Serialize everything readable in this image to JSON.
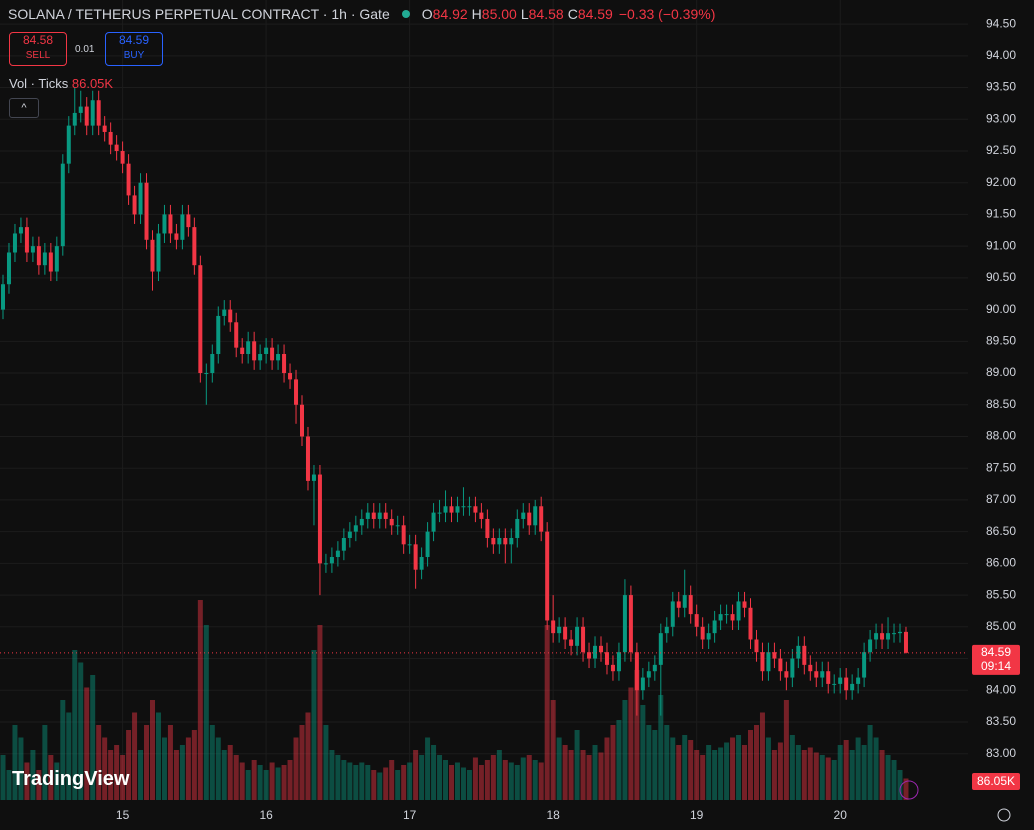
{
  "header": {
    "title": "SOLANA / TETHERUS PERPETUAL CONTRACT · 1h · Gate",
    "ohlc": [
      {
        "key": "O",
        "text": "84.92"
      },
      {
        "key": "H",
        "text": "85.00"
      },
      {
        "key": "L",
        "text": "84.58"
      },
      {
        "key": "C",
        "text": "84.59"
      }
    ],
    "change": "−0.33 (−0.39%)"
  },
  "trade": {
    "sell_price": "84.58",
    "sell": "SELL",
    "spread": "0.01",
    "buy_price": "84.59",
    "buy": "BUY"
  },
  "volume_legend": {
    "name": "Vol · Ticks",
    "value": "86.05K"
  },
  "logo": "TradingView",
  "chart_data": {
    "type": "candlestick",
    "up_color": "#089981",
    "down_color": "#f23645",
    "countdown": "09:14",
    "grid": true,
    "categories": [
      null,
      null,
      null,
      null,
      null,
      null,
      null,
      null,
      null,
      null,
      null,
      null,
      null,
      null,
      null,
      null,
      null,
      null,
      null,
      null,
      "15",
      null,
      null,
      null,
      null,
      null,
      null,
      null,
      null,
      null,
      null,
      null,
      null,
      null,
      null,
      null,
      null,
      null,
      null,
      null,
      null,
      null,
      null,
      null,
      "16",
      null,
      null,
      null,
      null,
      null,
      null,
      null,
      null,
      null,
      null,
      null,
      null,
      null,
      null,
      null,
      null,
      null,
      null,
      null,
      null,
      null,
      null,
      null,
      "17",
      null,
      null,
      null,
      null,
      null,
      null,
      null,
      null,
      null,
      null,
      null,
      null,
      null,
      null,
      null,
      null,
      null,
      null,
      null,
      null,
      null,
      null,
      null,
      "18",
      null,
      null,
      null,
      null,
      null,
      null,
      null,
      null,
      null,
      null,
      null,
      null,
      null,
      null,
      null,
      null,
      null,
      null,
      null,
      null,
      null,
      null,
      null,
      "19",
      null,
      null,
      null,
      null,
      null,
      null,
      null,
      null,
      null,
      null,
      null,
      null,
      null,
      null,
      null,
      null,
      null,
      null,
      null,
      null,
      null,
      null,
      null,
      "20",
      null,
      null,
      null,
      null,
      null,
      null,
      null,
      null,
      null,
      null,
      null
    ],
    "open": [
      90.0,
      90.4,
      90.9,
      91.2,
      91.3,
      90.9,
      91.0,
      90.7,
      90.9,
      90.6,
      91.0,
      92.3,
      92.9,
      93.1,
      93.2,
      92.9,
      93.3,
      92.9,
      92.8,
      92.6,
      92.5,
      92.3,
      91.8,
      91.5,
      92.0,
      91.1,
      90.6,
      91.2,
      91.5,
      91.2,
      91.1,
      91.5,
      91.3,
      90.7,
      89.0,
      89.0,
      89.3,
      89.9,
      90.0,
      89.8,
      89.4,
      89.3,
      89.5,
      89.2,
      89.3,
      89.4,
      89.2,
      89.3,
      89.0,
      88.9,
      88.5,
      88.0,
      87.3,
      87.4,
      86.0,
      86.0,
      86.1,
      86.2,
      86.4,
      86.5,
      86.6,
      86.7,
      86.8,
      86.7,
      86.8,
      86.7,
      86.6,
      86.6,
      86.3,
      86.3,
      85.9,
      86.1,
      86.5,
      86.8,
      86.8,
      86.9,
      86.8,
      86.9,
      86.9,
      86.9,
      86.8,
      86.7,
      86.4,
      86.3,
      86.4,
      86.3,
      86.4,
      86.7,
      86.8,
      86.6,
      86.9,
      86.5,
      85.1,
      84.9,
      85.0,
      84.8,
      84.7,
      85.0,
      84.6,
      84.5,
      84.7,
      84.6,
      84.4,
      84.3,
      84.6,
      85.5,
      84.6,
      84.0,
      84.2,
      84.3,
      84.4,
      84.9,
      85.0,
      85.4,
      85.3,
      85.5,
      85.2,
      85.0,
      84.8,
      84.9,
      85.1,
      85.2,
      85.2,
      85.1,
      85.4,
      85.3,
      84.8,
      84.6,
      84.3,
      84.6,
      84.5,
      84.3,
      84.2,
      84.5,
      84.7,
      84.4,
      84.3,
      84.2,
      84.3,
      84.1,
      84.1,
      84.2,
      84.0,
      84.1,
      84.2,
      84.6,
      84.8,
      84.9,
      84.8,
      84.9,
      84.9,
      84.92
    ],
    "high": [
      90.55,
      91.05,
      91.35,
      91.45,
      91.45,
      91.15,
      91.15,
      91.05,
      91.05,
      91.15,
      92.45,
      93.05,
      93.5,
      93.45,
      93.35,
      93.45,
      93.45,
      93.05,
      92.95,
      92.75,
      92.65,
      92.45,
      91.95,
      92.15,
      92.15,
      91.25,
      91.35,
      91.65,
      91.65,
      91.35,
      91.65,
      91.65,
      91.45,
      90.85,
      89.15,
      89.45,
      90.05,
      90.15,
      90.15,
      89.95,
      89.55,
      89.65,
      89.65,
      89.45,
      89.55,
      89.55,
      89.45,
      89.45,
      89.15,
      89.05,
      88.65,
      88.15,
      87.55,
      87.55,
      86.15,
      86.25,
      86.35,
      86.55,
      86.65,
      86.75,
      86.85,
      86.95,
      86.95,
      86.95,
      86.95,
      86.85,
      86.75,
      86.75,
      86.45,
      86.45,
      86.25,
      86.65,
      86.95,
      87.0,
      87.15,
      87.05,
      87.05,
      87.2,
      87.05,
      87.05,
      86.95,
      86.85,
      86.55,
      86.55,
      86.55,
      86.55,
      86.85,
      86.95,
      86.95,
      87.0,
      87.05,
      86.65,
      85.5,
      85.15,
      85.15,
      84.95,
      85.15,
      85.15,
      84.75,
      84.85,
      84.85,
      84.75,
      84.55,
      84.75,
      85.75,
      85.65,
      84.75,
      84.35,
      84.45,
      84.55,
      85.05,
      85.15,
      85.55,
      85.55,
      85.9,
      85.65,
      85.35,
      85.15,
      85.05,
      85.25,
      85.35,
      85.35,
      85.35,
      85.55,
      85.55,
      85.45,
      84.95,
      84.75,
      84.75,
      84.75,
      84.65,
      84.45,
      84.65,
      84.85,
      84.85,
      84.55,
      84.45,
      84.45,
      84.45,
      84.25,
      84.35,
      84.35,
      84.25,
      84.35,
      84.75,
      84.95,
      85.05,
      85.05,
      85.15,
      85.05,
      85.05,
      85.0
    ],
    "low": [
      89.85,
      90.25,
      90.75,
      91.05,
      90.75,
      90.75,
      90.55,
      90.55,
      90.45,
      90.45,
      90.85,
      92.15,
      92.75,
      92.95,
      92.75,
      92.75,
      92.75,
      92.65,
      92.45,
      92.35,
      92.15,
      91.65,
      91.35,
      91.35,
      90.95,
      90.3,
      90.45,
      91.05,
      91.05,
      90.95,
      90.95,
      91.15,
      90.55,
      88.85,
      88.5,
      88.85,
      89.15,
      89.75,
      89.65,
      89.25,
      89.15,
      89.15,
      89.05,
      89.05,
      89.15,
      89.05,
      89.05,
      88.85,
      88.75,
      88.2,
      87.85,
      87.15,
      86.6,
      85.5,
      85.85,
      85.85,
      85.95,
      86.05,
      86.25,
      86.35,
      86.45,
      86.55,
      86.55,
      86.55,
      86.55,
      86.45,
      86.45,
      86.15,
      86.15,
      85.6,
      85.75,
      85.95,
      86.35,
      86.65,
      86.65,
      86.65,
      86.65,
      86.75,
      86.75,
      86.65,
      86.55,
      86.25,
      86.15,
      86.15,
      86.0,
      86.0,
      86.25,
      86.55,
      86.45,
      86.45,
      86.35,
      84.95,
      84.75,
      84.75,
      84.65,
      84.55,
      84.55,
      84.45,
      84.35,
      84.35,
      84.45,
      84.25,
      84.15,
      84.15,
      84.45,
      84.45,
      83.6,
      83.85,
      84.05,
      84.15,
      83.6,
      84.75,
      84.85,
      85.15,
      85.15,
      85.05,
      84.85,
      84.65,
      84.65,
      84.75,
      84.95,
      85.05,
      84.95,
      84.95,
      85.15,
      84.65,
      84.45,
      84.15,
      84.15,
      84.35,
      84.15,
      84.0,
      84.05,
      84.35,
      84.25,
      84.15,
      84.05,
      84.05,
      83.95,
      83.95,
      83.95,
      83.85,
      83.85,
      83.95,
      84.05,
      84.45,
      84.65,
      84.65,
      84.65,
      84.75,
      84.75,
      84.58
    ],
    "close": [
      90.4,
      90.9,
      91.2,
      91.3,
      90.9,
      91.0,
      90.7,
      90.9,
      90.6,
      91.0,
      92.3,
      92.9,
      93.1,
      93.2,
      92.9,
      93.3,
      92.9,
      92.8,
      92.6,
      92.5,
      92.3,
      91.8,
      91.5,
      92.0,
      91.1,
      90.6,
      91.2,
      91.5,
      91.2,
      91.1,
      91.5,
      91.3,
      90.7,
      89.0,
      89.0,
      89.3,
      89.9,
      90.0,
      89.8,
      89.4,
      89.3,
      89.5,
      89.2,
      89.3,
      89.4,
      89.2,
      89.3,
      89.0,
      88.9,
      88.5,
      88.0,
      87.3,
      87.4,
      86.0,
      86.0,
      86.1,
      86.2,
      86.4,
      86.5,
      86.6,
      86.7,
      86.8,
      86.7,
      86.8,
      86.7,
      86.6,
      86.6,
      86.3,
      86.3,
      85.9,
      86.1,
      86.5,
      86.8,
      86.8,
      86.9,
      86.8,
      86.9,
      86.9,
      86.9,
      86.8,
      86.7,
      86.4,
      86.3,
      86.4,
      86.3,
      86.4,
      86.7,
      86.8,
      86.6,
      86.9,
      86.5,
      85.1,
      84.9,
      85.0,
      84.8,
      84.7,
      85.0,
      84.6,
      84.5,
      84.7,
      84.6,
      84.4,
      84.3,
      84.6,
      85.5,
      84.6,
      84.0,
      84.2,
      84.3,
      84.4,
      84.9,
      85.0,
      85.4,
      85.3,
      85.5,
      85.2,
      85.0,
      84.8,
      84.9,
      85.1,
      85.2,
      85.2,
      85.1,
      85.4,
      85.3,
      84.8,
      84.6,
      84.3,
      84.6,
      84.5,
      84.3,
      84.2,
      84.5,
      84.7,
      84.4,
      84.3,
      84.2,
      84.3,
      84.1,
      84.1,
      84.2,
      84.0,
      84.1,
      84.2,
      84.6,
      84.8,
      84.9,
      84.8,
      84.9,
      84.9,
      84.92,
      84.59
    ],
    "volume": [
      180000,
      120000,
      300000,
      250000,
      150000,
      200000,
      120000,
      300000,
      180000,
      150000,
      400000,
      350000,
      600000,
      550000,
      450000,
      500000,
      300000,
      250000,
      200000,
      220000,
      180000,
      280000,
      350000,
      200000,
      300000,
      400000,
      350000,
      250000,
      300000,
      200000,
      220000,
      250000,
      280000,
      800000,
      700000,
      300000,
      250000,
      200000,
      220000,
      180000,
      150000,
      120000,
      160000,
      140000,
      120000,
      150000,
      130000,
      140000,
      160000,
      250000,
      300000,
      350000,
      600000,
      700000,
      300000,
      200000,
      180000,
      160000,
      150000,
      140000,
      150000,
      140000,
      120000,
      110000,
      130000,
      160000,
      120000,
      140000,
      150000,
      200000,
      180000,
      250000,
      220000,
      180000,
      160000,
      140000,
      150000,
      130000,
      120000,
      170000,
      140000,
      160000,
      180000,
      200000,
      160000,
      150000,
      140000,
      170000,
      180000,
      160000,
      150000,
      700000,
      400000,
      250000,
      220000,
      200000,
      280000,
      200000,
      180000,
      220000,
      190000,
      250000,
      300000,
      320000,
      400000,
      450000,
      520000,
      380000,
      300000,
      280000,
      420000,
      300000,
      250000,
      220000,
      260000,
      240000,
      200000,
      180000,
      220000,
      200000,
      210000,
      230000,
      250000,
      260000,
      220000,
      280000,
      300000,
      350000,
      250000,
      200000,
      230000,
      400000,
      260000,
      220000,
      200000,
      210000,
      190000,
      180000,
      170000,
      160000,
      220000,
      240000,
      200000,
      250000,
      220000,
      300000,
      250000,
      200000,
      180000,
      160000,
      120000,
      86050
    ],
    "ylim": [
      82.27,
      94.88
    ],
    "yticks": [
      {
        "value": 83,
        "label": "83.00"
      },
      {
        "value": 83.5,
        "label": "83.50"
      },
      {
        "value": 84,
        "label": "84.00"
      },
      {
        "value": 84.5,
        "label": "84.50"
      },
      {
        "value": 85,
        "label": "85.00"
      },
      {
        "value": 85.5,
        "label": "85.50"
      },
      {
        "value": 86,
        "label": "86.00"
      },
      {
        "value": 86.5,
        "label": "86.50"
      },
      {
        "value": 87,
        "label": "87.00"
      },
      {
        "value": 87.5,
        "label": "87.50"
      },
      {
        "value": 88,
        "label": "88.00"
      },
      {
        "value": 88.5,
        "label": "88.50"
      },
      {
        "value": 89,
        "label": "89.00"
      },
      {
        "value": 89.5,
        "label": "89.50"
      },
      {
        "value": 90,
        "label": "90.00"
      },
      {
        "value": 90.5,
        "label": "90.50"
      },
      {
        "value": 91,
        "label": "91.00"
      },
      {
        "value": 91.5,
        "label": "91.50"
      },
      {
        "value": 92,
        "label": "92.00"
      },
      {
        "value": 92.5,
        "label": "92.50"
      },
      {
        "value": 93,
        "label": "93.00"
      },
      {
        "value": 93.5,
        "label": "93.50"
      },
      {
        "value": 94,
        "label": "94.00"
      },
      {
        "value": 94.5,
        "label": "94.50"
      }
    ]
  }
}
